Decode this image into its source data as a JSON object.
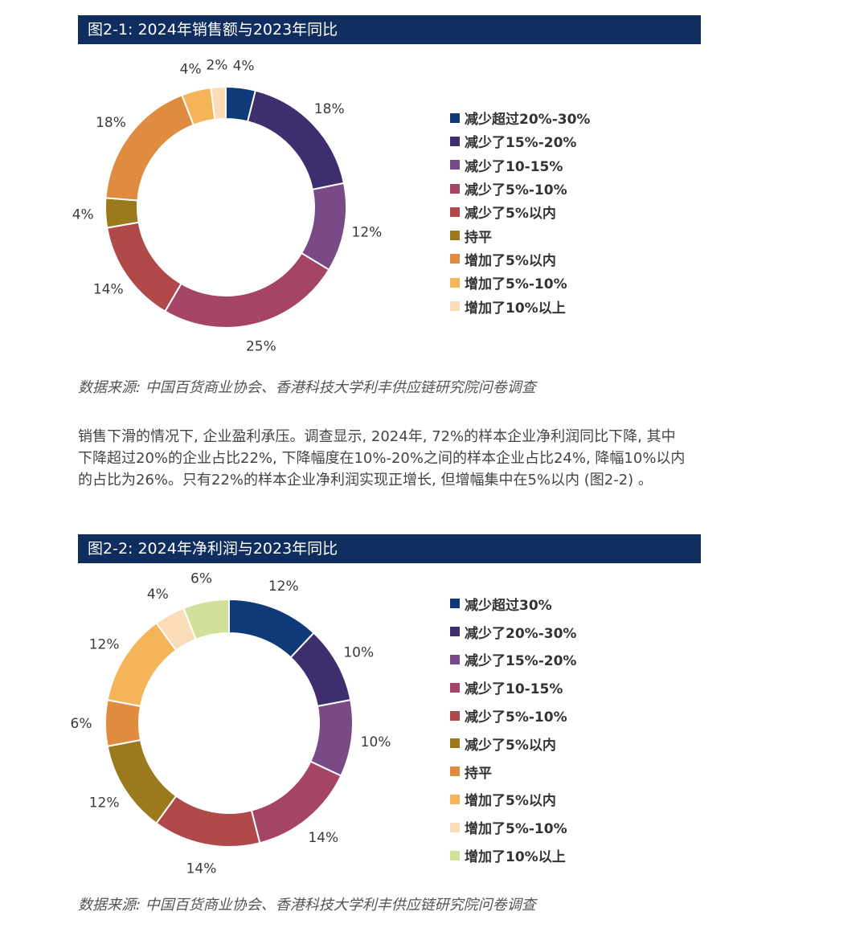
{
  "figure1": {
    "header": "图2-1: 2024年销售额与2023年同比",
    "source": "数据来源: 中国百货商业协会、香港科技大学利丰供应链研究院问卷调查"
  },
  "body_text": "销售下滑的情况下, 企业盈利承压。调查显示, 2024年, 72%的样本企业净利润同比下降, 其中下降超过20%的企业占比22%, 下降幅度在10%-20%之间的样本企业占比24%, 降幅10%以内的占比为26%。只有22%的样本企业净利润实现正增长, 但增幅集中在5%以内 (图2-2) 。",
  "figure2": {
    "header": "图2-2: 2024年净利润与2023年同比",
    "source": "数据来源: 中国百货商业协会、香港科技大学利丰供应链研究院问卷调查"
  },
  "chart_data": [
    {
      "type": "pie",
      "donut": true,
      "title": "",
      "legend_position": "right",
      "categories": [
        "减少超过20%-30%",
        "减少了15%-20%",
        "减少了10-15%",
        "减少了5%-10%",
        "减少了5%以内",
        "持平",
        "增加了5%以内",
        "增加了5%-10%",
        "增加了10%以上"
      ],
      "values": [
        4,
        18,
        12,
        25,
        14,
        4,
        18,
        4,
        2
      ],
      "labels": [
        "4%",
        "18%",
        "12%",
        "25%",
        "14%",
        "4%",
        "18%",
        "4%",
        "2%"
      ],
      "colors": [
        "#0f3a78",
        "#3f2e6e",
        "#7a4a86",
        "#a64468",
        "#b04a4a",
        "#9a7a1c",
        "#e08c40",
        "#f5b458",
        "#fadcb8"
      ]
    },
    {
      "type": "pie",
      "donut": true,
      "title": "",
      "legend_position": "right",
      "categories": [
        "减少超过30%",
        "减少了20%-30%",
        "减少了15%-20%",
        "减少了10-15%",
        "减少了5%-10%",
        "减少了5%以内",
        "持平",
        "增加了5%以内",
        "增加了5%-10%",
        "增加了10%以上"
      ],
      "values": [
        12,
        10,
        10,
        14,
        14,
        12,
        6,
        12,
        4,
        6
      ],
      "labels": [
        "12%",
        "10%",
        "10%",
        "14%",
        "14%",
        "12%",
        "6%",
        "12%",
        "4%",
        "6%"
      ],
      "colors": [
        "#0f3a78",
        "#3f2e6e",
        "#7a4a86",
        "#a64468",
        "#b04a4a",
        "#9a7a1c",
        "#e08c40",
        "#f5b458",
        "#fadcb8",
        "#d2e19a"
      ]
    }
  ]
}
